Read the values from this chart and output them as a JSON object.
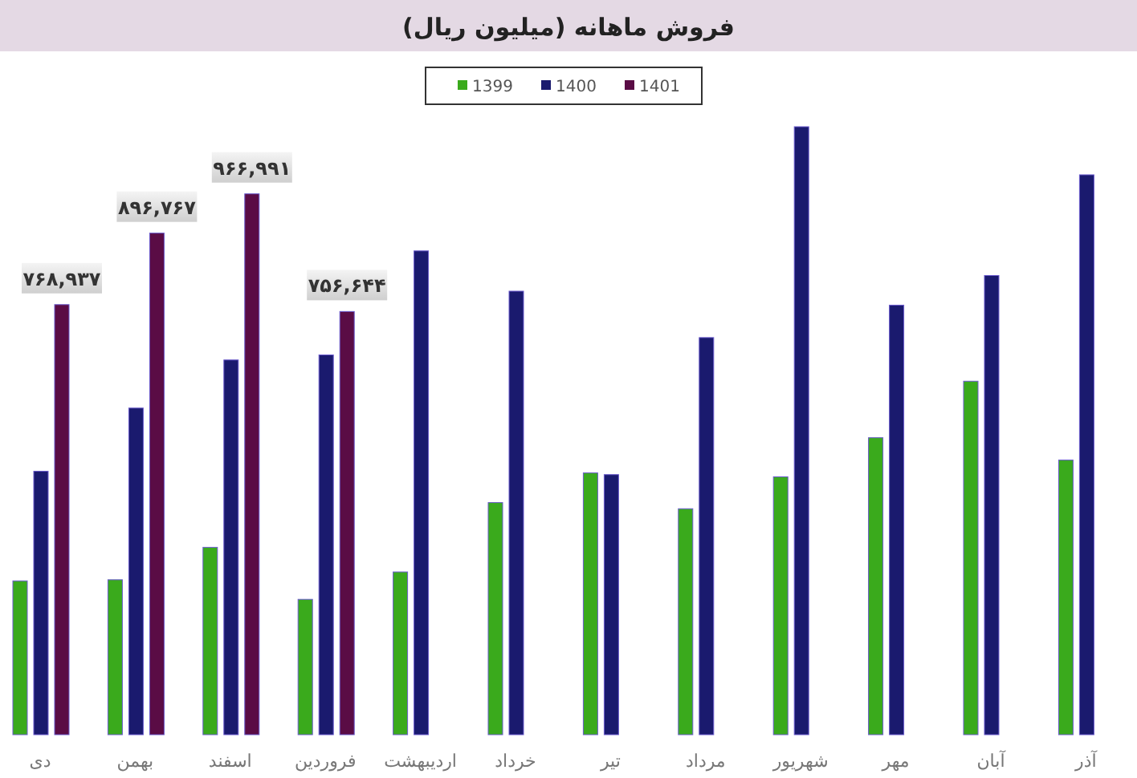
{
  "chart_data": {
    "type": "bar",
    "title": "فروش ماهانه (میلیون ریال)",
    "categories": [
      "دی",
      "بهمن",
      "اسفند",
      "فروردین",
      "اردیبهشت",
      "خرداد",
      "تیر",
      "مرداد",
      "شهریور",
      "مهر",
      "آبان",
      "آذر"
    ],
    "series": [
      {
        "name": "1399",
        "color": "#3aaa1c",
        "values": [
          275000,
          277000,
          335000,
          242000,
          291000,
          415000,
          468000,
          404000,
          461000,
          531000,
          632000,
          491000
        ]
      },
      {
        "name": "1400",
        "color": "#1a1a6e",
        "values": [
          471000,
          584000,
          670000,
          679000,
          865000,
          793000,
          465000,
          710000,
          1087000,
          768000,
          821000,
          1001000
        ]
      },
      {
        "name": "1401",
        "color": "#5a0c45",
        "values": [
          768937,
          896767,
          966991,
          756644,
          null,
          null,
          null,
          null,
          null,
          null,
          null,
          null
        ],
        "value_labels": [
          "۷۶۸,۹۳۷",
          "۸۹۶,۷۶۷",
          "۹۶۶,۹۹۱",
          "۷۵۶,۶۴۴",
          null,
          null,
          null,
          null,
          null,
          null,
          null,
          null
        ]
      }
    ],
    "legend": "top"
  }
}
